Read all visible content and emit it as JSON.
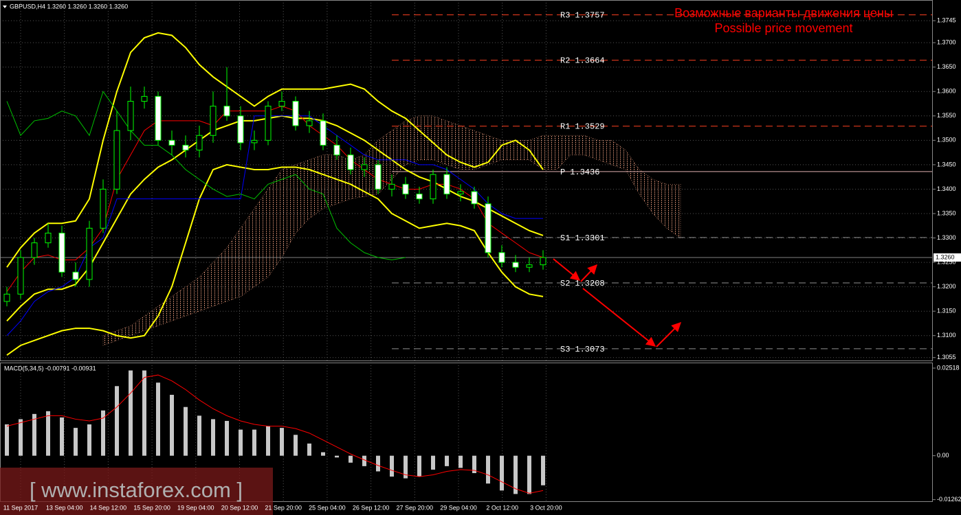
{
  "chart_data": {
    "type": "candlestick",
    "header": "GBPUSD,H4  1.3260 1.3260 1.3260 1.3260",
    "annotations": [
      "Возможные варианты движения цены",
      "Possible price movement"
    ],
    "watermark": "[ www.instaforex.com ]",
    "x_labels": [
      "11 Sep 2017",
      "13 Sep 04:00",
      "14 Sep 12:00",
      "15 Sep 20:00",
      "19 Sep 04:00",
      "20 Sep 12:00",
      "21 Sep 20:00",
      "25 Sep 04:00",
      "26 Sep 12:00",
      "27 Sep 20:00",
      "29 Sep 04:00",
      "2 Oct 12:00",
      "3 Oct 20:00"
    ],
    "ylim": [
      1.3049,
      1.3786
    ],
    "yticks": [
      {
        "value": 1.3055,
        "label": "1.3055"
      },
      {
        "value": 1.31,
        "label": "1.3100"
      },
      {
        "value": 1.315,
        "label": "1.3150"
      },
      {
        "value": 1.32,
        "label": "1.3200"
      },
      {
        "value": 1.325,
        "label": "1.3250"
      },
      {
        "value": 1.33,
        "label": "1.3300"
      },
      {
        "value": 1.335,
        "label": "1.3350"
      },
      {
        "value": 1.34,
        "label": "1.3400"
      },
      {
        "value": 1.345,
        "label": "1.3450"
      },
      {
        "value": 1.35,
        "label": "1.3500"
      },
      {
        "value": 1.355,
        "label": "1.3550"
      },
      {
        "value": 1.36,
        "label": "1.3600"
      },
      {
        "value": 1.365,
        "label": "1.3650"
      },
      {
        "value": 1.37,
        "label": "1.3700"
      },
      {
        "value": 1.3745,
        "label": "1.3745"
      }
    ],
    "last_price": {
      "value": 1.326,
      "label": "1.3260"
    },
    "grid": true,
    "candles": {
      "open": [
        1.317,
        1.3185,
        1.326,
        1.329,
        1.331,
        1.323,
        1.3215,
        1.332,
        1.34,
        1.352,
        1.358,
        1.359,
        1.35,
        1.349,
        1.348,
        1.351,
        1.357,
        1.355,
        1.3495,
        1.35,
        1.357,
        1.358,
        1.353,
        1.354,
        1.349,
        1.347,
        1.344,
        1.345,
        1.34,
        1.341,
        1.339,
        1.338,
        1.343,
        1.339,
        1.3395,
        1.337,
        1.327,
        1.325,
        1.324,
        1.3245
      ],
      "high": [
        1.32,
        1.3275,
        1.33,
        1.333,
        1.3325,
        1.325,
        1.3335,
        1.342,
        1.356,
        1.361,
        1.361,
        1.36,
        1.352,
        1.351,
        1.353,
        1.36,
        1.365,
        1.357,
        1.352,
        1.358,
        1.36,
        1.359,
        1.356,
        1.3555,
        1.351,
        1.3485,
        1.3465,
        1.346,
        1.343,
        1.3425,
        1.3405,
        1.344,
        1.3445,
        1.341,
        1.3405,
        1.3385,
        1.3285,
        1.3265,
        1.326,
        1.3275
      ],
      "low": [
        1.316,
        1.3175,
        1.3245,
        1.328,
        1.322,
        1.32,
        1.32,
        1.331,
        1.339,
        1.35,
        1.3565,
        1.349,
        1.347,
        1.3465,
        1.3465,
        1.3495,
        1.354,
        1.348,
        1.348,
        1.349,
        1.356,
        1.352,
        1.3515,
        1.348,
        1.346,
        1.343,
        1.3425,
        1.339,
        1.3385,
        1.338,
        1.337,
        1.337,
        1.338,
        1.3375,
        1.336,
        1.326,
        1.324,
        1.323,
        1.323,
        1.3235
      ],
      "close": [
        1.3185,
        1.326,
        1.329,
        1.331,
        1.323,
        1.3215,
        1.332,
        1.34,
        1.352,
        1.358,
        1.359,
        1.35,
        1.349,
        1.348,
        1.351,
        1.357,
        1.355,
        1.3495,
        1.35,
        1.357,
        1.358,
        1.353,
        1.354,
        1.349,
        1.347,
        1.344,
        1.345,
        1.34,
        1.341,
        1.339,
        1.338,
        1.343,
        1.339,
        1.3395,
        1.337,
        1.327,
        1.325,
        1.324,
        1.3245,
        1.326
      ],
      "up_color": "#00ff00",
      "up_fill": "#000000",
      "down_fill": "#ffffff"
    },
    "series": [
      {
        "name": "bb_upper",
        "color": "#ffff00",
        "width": 2,
        "values": [
          1.324,
          1.328,
          1.331,
          1.333,
          1.333,
          1.3335,
          1.338,
          1.35,
          1.36,
          1.368,
          1.371,
          1.372,
          1.3715,
          1.369,
          1.3655,
          1.363,
          1.361,
          1.359,
          1.357,
          1.359,
          1.3605,
          1.3605,
          1.3605,
          1.3605,
          1.361,
          1.3615,
          1.3605,
          1.358,
          1.356,
          1.3545,
          1.352,
          1.3495,
          1.347,
          1.3455,
          1.3445,
          1.3455,
          1.349,
          1.35,
          1.348,
          1.344
        ]
      },
      {
        "name": "bb_middle",
        "color": "#ffff00",
        "width": 2,
        "values": [
          1.313,
          1.316,
          1.3185,
          1.3195,
          1.3195,
          1.3205,
          1.324,
          1.329,
          1.334,
          1.339,
          1.342,
          1.3445,
          1.346,
          1.348,
          1.35,
          1.352,
          1.353,
          1.354,
          1.354,
          1.3545,
          1.355,
          1.3545,
          1.3545,
          1.354,
          1.353,
          1.3515,
          1.35,
          1.348,
          1.346,
          1.344,
          1.3425,
          1.3415,
          1.34,
          1.3385,
          1.3375,
          1.336,
          1.3345,
          1.333,
          1.3315,
          1.3305
        ]
      },
      {
        "name": "bb_lower",
        "color": "#ffff00",
        "width": 2,
        "values": [
          1.306,
          1.308,
          1.309,
          1.31,
          1.311,
          1.3115,
          1.3115,
          1.311,
          1.31,
          1.3095,
          1.31,
          1.314,
          1.32,
          1.329,
          1.338,
          1.344,
          1.345,
          1.3445,
          1.344,
          1.344,
          1.3445,
          1.3445,
          1.344,
          1.343,
          1.342,
          1.341,
          1.3395,
          1.338,
          1.335,
          1.3335,
          1.332,
          1.3325,
          1.333,
          1.3325,
          1.3315,
          1.327,
          1.323,
          1.32,
          1.3185,
          1.318
        ]
      },
      {
        "name": "tenkan",
        "color": "#ff0000",
        "width": 1,
        "values": [
          1.319,
          1.323,
          1.326,
          1.3265,
          1.3255,
          1.3255,
          1.328,
          1.332,
          1.342,
          1.347,
          1.352,
          1.354,
          1.354,
          1.354,
          1.354,
          1.353,
          1.356,
          1.356,
          1.356,
          1.356,
          1.357,
          1.356,
          1.353,
          1.351,
          1.349,
          1.346,
          1.344,
          1.342,
          1.341,
          1.34,
          1.34,
          1.341,
          1.341,
          1.34,
          1.338,
          1.333,
          1.331,
          1.329,
          1.327,
          1.326
        ]
      },
      {
        "name": "kijun",
        "color": "#0000ff",
        "width": 1,
        "values": [
          1.31,
          1.313,
          1.317,
          1.319,
          1.32,
          1.322,
          1.328,
          1.33,
          1.338,
          1.338,
          1.338,
          1.338,
          1.338,
          1.338,
          1.338,
          1.338,
          1.338,
          1.338,
          1.355,
          1.355,
          1.355,
          1.355,
          1.355,
          1.353,
          1.351,
          1.349,
          1.347,
          1.346,
          1.346,
          1.346,
          1.345,
          1.345,
          1.344,
          1.342,
          1.34,
          1.337,
          1.335,
          1.334,
          1.334,
          1.334
        ]
      },
      {
        "name": "chikou",
        "color": "#00c000",
        "width": 1,
        "values": [
          1.358,
          1.351,
          1.354,
          1.3545,
          1.356,
          1.355,
          1.351,
          1.36,
          1.356,
          1.352,
          1.349,
          1.349,
          1.347,
          1.344,
          1.342,
          1.34,
          1.3385,
          1.339,
          1.338,
          1.341,
          1.342,
          1.343,
          1.34,
          1.339,
          1.332,
          1.329,
          1.327,
          1.326,
          1.3255,
          1.326,
          null,
          null,
          null,
          null,
          null,
          null,
          null,
          null,
          null,
          null
        ]
      }
    ],
    "cloud": {
      "color": "#f0a080",
      "span_a": [
        null,
        null,
        null,
        null,
        null,
        null,
        null,
        1.31,
        1.311,
        1.312,
        1.314,
        1.316,
        1.318,
        1.32,
        1.322,
        1.325,
        1.328,
        1.332,
        1.336,
        1.34,
        1.344,
        1.345,
        1.346,
        1.347,
        1.347,
        1.346,
        1.347,
        1.35,
        1.352,
        1.354,
        1.355,
        1.355,
        1.354,
        1.353,
        1.352,
        1.351,
        1.35,
        1.35,
        1.35,
        1.351,
        1.351,
        1.351,
        1.351,
        1.35,
        1.35,
        1.348,
        1.344,
        1.342,
        1.341,
        1.341
      ],
      "span_b": [
        null,
        null,
        null,
        null,
        null,
        null,
        null,
        1.308,
        1.309,
        1.31,
        1.311,
        1.312,
        1.313,
        1.314,
        1.315,
        1.316,
        1.317,
        1.318,
        1.32,
        1.322,
        1.326,
        1.331,
        1.334,
        1.336,
        1.337,
        1.338,
        1.3385,
        1.339,
        1.342,
        1.345,
        1.346,
        1.346,
        1.345,
        1.344,
        1.344,
        1.345,
        1.346,
        1.346,
        1.346,
        1.344,
        1.344,
        1.347,
        1.347,
        1.346,
        1.345,
        1.344,
        1.339,
        1.335,
        1.332,
        1.33
      ]
    },
    "pivots": [
      {
        "name": "R3",
        "value": 1.3757,
        "label": "1.3757",
        "color": "#ff4020"
      },
      {
        "name": "R2",
        "value": 1.3664,
        "label": "1.3664",
        "color": "#ff4020"
      },
      {
        "name": "R1",
        "value": 1.3529,
        "label": "1.3529",
        "color": "#ff4020"
      },
      {
        "name": "P",
        "value": 1.3436,
        "label": "1.3436",
        "color": "#e0b0b0"
      },
      {
        "name": "S1",
        "value": 1.3301,
        "label": "1.3301",
        "color": "#909090"
      },
      {
        "name": "S2",
        "value": 1.3208,
        "label": "1.3208",
        "color": "#909090"
      },
      {
        "name": "S3",
        "value": 1.3073,
        "label": "1.3073",
        "color": "#909090"
      }
    ],
    "macd": {
      "label": "MACD(5,34,5) -0.00791 -0.00931",
      "y2lim": [
        -0.01309,
        0.02657
      ],
      "y2ticks": [
        0.02518,
        {
          "value": 0,
          "label": "0.00"
        },
        -0.01262
      ],
      "hist_color": "#c8c8c8",
      "signal_color": "#ff0000",
      "histogram": [
        0.009,
        0.0105,
        0.012,
        0.0128,
        0.011,
        0.008,
        0.009,
        0.013,
        0.02,
        0.0245,
        0.0245,
        0.021,
        0.0175,
        0.014,
        0.0115,
        0.0105,
        0.01,
        0.0075,
        0.0075,
        0.0085,
        0.008,
        0.006,
        0.0035,
        0.001,
        -0.0005,
        -0.002,
        -0.003,
        -0.0045,
        -0.006,
        -0.0065,
        -0.006,
        -0.004,
        -0.003,
        -0.0035,
        -0.005,
        -0.008,
        -0.01,
        -0.011,
        -0.011,
        -0.0085
      ],
      "signal": [
        0.0085,
        0.0095,
        0.0105,
        0.0115,
        0.0115,
        0.0105,
        0.01,
        0.0108,
        0.014,
        0.018,
        0.0225,
        0.0232,
        0.0215,
        0.019,
        0.016,
        0.0135,
        0.0115,
        0.01,
        0.009,
        0.0085,
        0.0085,
        0.0078,
        0.0065,
        0.0045,
        0.0025,
        0.0005,
        -0.0012,
        -0.0028,
        -0.0042,
        -0.0055,
        -0.006,
        -0.0055,
        -0.0045,
        -0.004,
        -0.0042,
        -0.0055,
        -0.0075,
        -0.0095,
        -0.0108,
        -0.01
      ]
    }
  }
}
